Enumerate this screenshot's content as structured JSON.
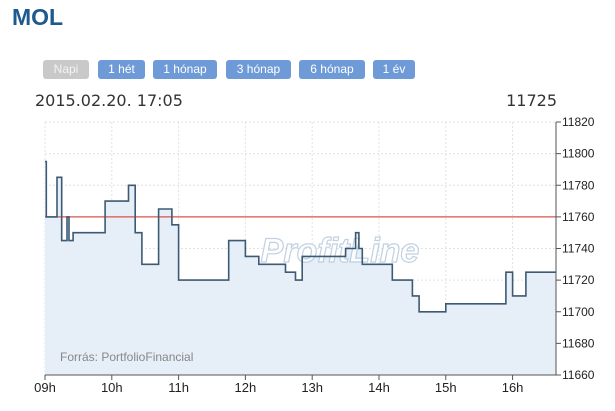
{
  "ticker": "MOL",
  "ranges": [
    {
      "label": "Napi",
      "active": true
    },
    {
      "label": "1 hét",
      "active": false
    },
    {
      "label": "1 hónap",
      "active": false
    },
    {
      "label": "3 hónap",
      "active": false
    },
    {
      "label": "6 hónap",
      "active": false
    },
    {
      "label": "1 év",
      "active": false
    }
  ],
  "header": {
    "datetime": "2015.02.20. 17:05",
    "price": "11725"
  },
  "watermark": "ProfitLine",
  "source": "Forrás: PortfolioFinancial",
  "colors": {
    "line": "#3d5a74",
    "area": "#e6eef7",
    "reference": "#d9534f",
    "accent": "#6e9bd7"
  },
  "chart_data": {
    "type": "line",
    "xlabel": "",
    "ylabel": "",
    "xlim": [
      9.0,
      16.65
    ],
    "ylim": [
      11660,
      11820
    ],
    "x_ticks": [
      9,
      10,
      11,
      12,
      13,
      14,
      15,
      16
    ],
    "x_tick_labels": [
      "09h",
      "10h",
      "11h",
      "12h",
      "13h",
      "14h",
      "15h",
      "16h"
    ],
    "y_ticks": [
      11660,
      11680,
      11700,
      11720,
      11740,
      11760,
      11780,
      11800,
      11820
    ],
    "reference_line": 11760,
    "grid": true,
    "legend": "none",
    "series": [
      {
        "x": [
          9.0,
          9.02,
          9.1,
          9.18,
          9.22,
          9.25,
          9.3,
          9.33,
          9.36,
          9.42,
          9.5,
          9.6,
          9.7,
          9.8,
          9.9,
          10.0,
          10.1,
          10.15,
          10.2,
          10.25,
          10.3,
          10.35,
          10.4,
          10.45,
          10.5,
          10.7,
          10.8,
          10.9,
          11.0,
          11.1,
          11.2,
          11.3,
          11.5,
          11.7,
          11.75,
          11.8,
          11.9,
          11.95,
          12.0,
          12.05,
          12.1,
          12.15,
          12.2,
          12.3,
          12.35,
          12.45,
          12.55,
          12.6,
          12.65,
          12.75,
          12.85,
          12.9,
          13.0,
          13.1,
          13.2,
          13.3,
          13.4,
          13.5,
          13.6,
          13.65,
          13.7,
          13.75,
          13.8,
          13.9,
          14.0,
          14.1,
          14.2,
          14.3,
          14.4,
          14.5,
          14.6,
          14.7,
          14.9,
          15.0,
          15.2,
          15.5,
          15.7,
          15.8,
          15.9,
          15.95,
          16.0,
          16.05,
          16.1,
          16.2,
          16.3,
          16.5,
          16.65
        ],
        "y": [
          11795,
          11760,
          11760,
          11785,
          11785,
          11745,
          11745,
          11760,
          11745,
          11750,
          11750,
          11750,
          11750,
          11750,
          11770,
          11770,
          11770,
          11770,
          11770,
          11780,
          11780,
          11750,
          11750,
          11730,
          11730,
          11765,
          11765,
          11755,
          11720,
          11720,
          11720,
          11720,
          11720,
          11720,
          11745,
          11745,
          11745,
          11745,
          11735,
          11735,
          11735,
          11735,
          11730,
          11730,
          11730,
          11730,
          11730,
          11725,
          11725,
          11720,
          11735,
          11735,
          11735,
          11735,
          11735,
          11735,
          11735,
          11740,
          11740,
          11750,
          11740,
          11730,
          11730,
          11730,
          11730,
          11730,
          11720,
          11720,
          11720,
          11710,
          11700,
          11700,
          11700,
          11705,
          11705,
          11705,
          11705,
          11705,
          11725,
          11725,
          11710,
          11710,
          11710,
          11725,
          11725,
          11725,
          11725
        ]
      }
    ]
  }
}
